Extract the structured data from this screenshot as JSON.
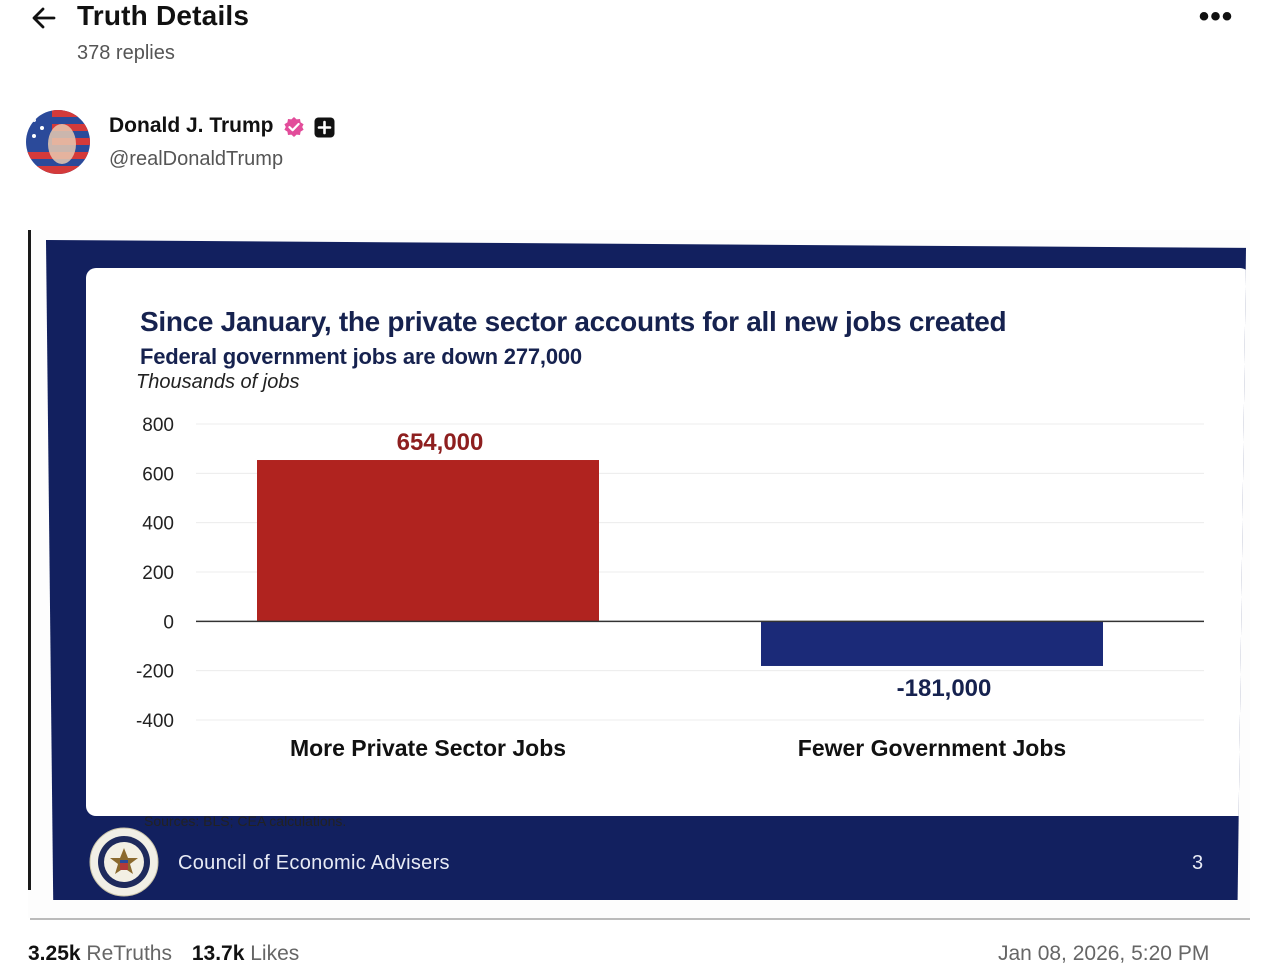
{
  "header": {
    "title": "Truth Details",
    "reply_count": "378 replies"
  },
  "author": {
    "name": "Donald J. Trump",
    "handle": "@realDonaldTrump"
  },
  "slide": {
    "title": "Since January, the private sector accounts for all new jobs created",
    "subtitle": "Federal government jobs are down 277,000",
    "source": "Sources: BLS; CEA calculations.",
    "org_name": "Council of Economic Advisers",
    "page_number": "3"
  },
  "chart_data": {
    "type": "bar",
    "ylabel": "Thousands of jobs",
    "ylim": [
      -400,
      800
    ],
    "yticks": [
      800,
      600,
      400,
      200,
      0,
      -200,
      -400
    ],
    "categories": [
      "More Private Sector Jobs",
      "Fewer Government Jobs"
    ],
    "values": [
      654,
      -181
    ],
    "data_labels": [
      "654,000",
      "-181,000"
    ],
    "colors": [
      "#b0231f",
      "#1b2a78"
    ],
    "grid": true
  },
  "stats": {
    "retruths_count": "3.25k",
    "retruths_label": "ReTruths",
    "likes_count": "13.7k",
    "likes_label": "Likes"
  },
  "timestamp": "Jan 08, 2026, 5:20 PM",
  "colors": {
    "navy": "#12205f",
    "red_bar": "#b0231f",
    "blue_bar": "#1b2a78",
    "verified": "#e24c9a"
  }
}
